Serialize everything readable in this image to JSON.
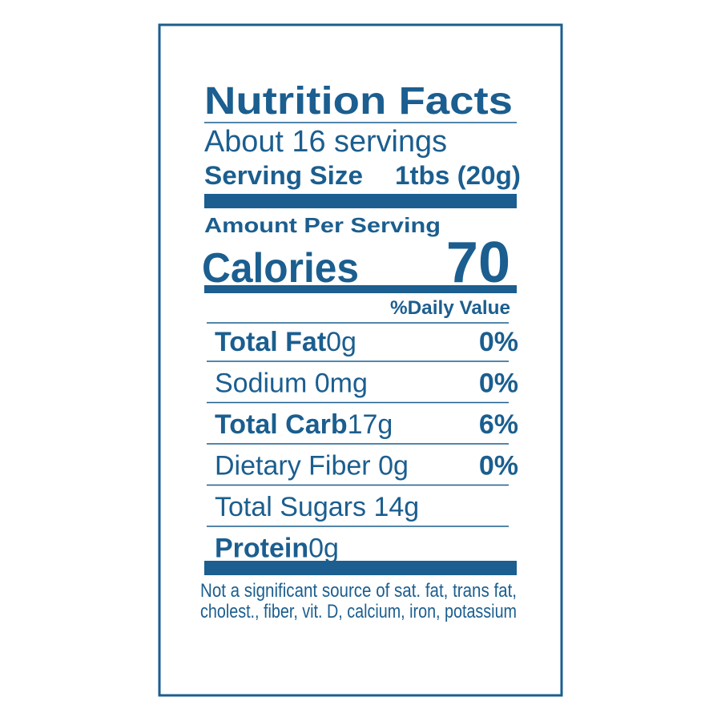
{
  "title": "Nutrition Facts",
  "servings": "About 16 servings",
  "serving_size": {
    "label": "Serving Size",
    "value": "1tbs (20g)"
  },
  "amount_per_serving": "Amount Per Serving",
  "calories": {
    "label": "Calories",
    "value": 70
  },
  "daily_value_header": "%Daily Value",
  "nutrients": [
    {
      "name": "Total Fat",
      "amount": "0g",
      "dv": "0%",
      "bold": true
    },
    {
      "name": "Sodium",
      "amount": "0mg",
      "dv": "0%",
      "bold": false
    },
    {
      "name": "Total Carb",
      "amount": "17g",
      "dv": "6%",
      "bold": true
    },
    {
      "name": "Dietary Fiber",
      "amount": "0g",
      "dv": "0%",
      "bold": false
    },
    {
      "name": "Total Sugars",
      "amount": "14g",
      "bold": false
    },
    {
      "name": "Protein",
      "amount": "0g",
      "bold": true
    }
  ],
  "footnote": [
    "Not a significant source of sat. fat, trans fat,",
    "cholest., fiber, vit. D, calcium, iron, potassium"
  ]
}
